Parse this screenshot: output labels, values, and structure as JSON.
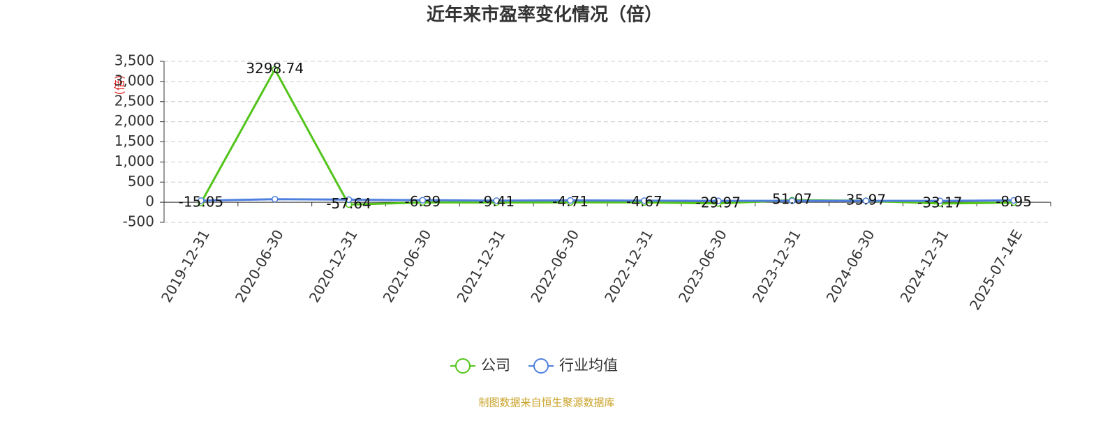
{
  "chart_data": {
    "type": "line",
    "title": "近年来市盈率变化情况（倍）",
    "y_label": "(倍)",
    "source": "制图数据来自恒生聚源数据库",
    "categories": [
      "2019-12-31",
      "2020-06-30",
      "2020-12-31",
      "2021-06-30",
      "2021-12-31",
      "2022-06-30",
      "2022-12-31",
      "2023-06-30",
      "2023-12-31",
      "2024-06-30",
      "2024-12-31",
      "2025-07-14E"
    ],
    "series": [
      {
        "name": "公司",
        "color": "#52c41a",
        "values": [
          -15.05,
          3298.74,
          -57.64,
          -6.39,
          -9.41,
          -4.71,
          -4.67,
          -29.97,
          51.07,
          35.97,
          -33.17,
          -8.95
        ],
        "show_labels": true
      },
      {
        "name": "行业均值",
        "color": "#4e7fde",
        "values": [
          40,
          75,
          65,
          50,
          40,
          45,
          40,
          35,
          35,
          35,
          35,
          45
        ]
      }
    ],
    "ylim": [
      -500,
      3500
    ],
    "yticks": [
      {
        "value": -500,
        "label": "-500"
      },
      0,
      500,
      {
        "value": 1000,
        "label": "1,000"
      },
      {
        "value": 1500,
        "label": "1,500"
      },
      {
        "value": 2000,
        "label": "2,000"
      },
      {
        "value": 2500,
        "label": "2,500"
      },
      {
        "value": 3000,
        "label": "3,000"
      },
      {
        "value": 3500,
        "label": "3,500"
      }
    ],
    "grid": true
  }
}
